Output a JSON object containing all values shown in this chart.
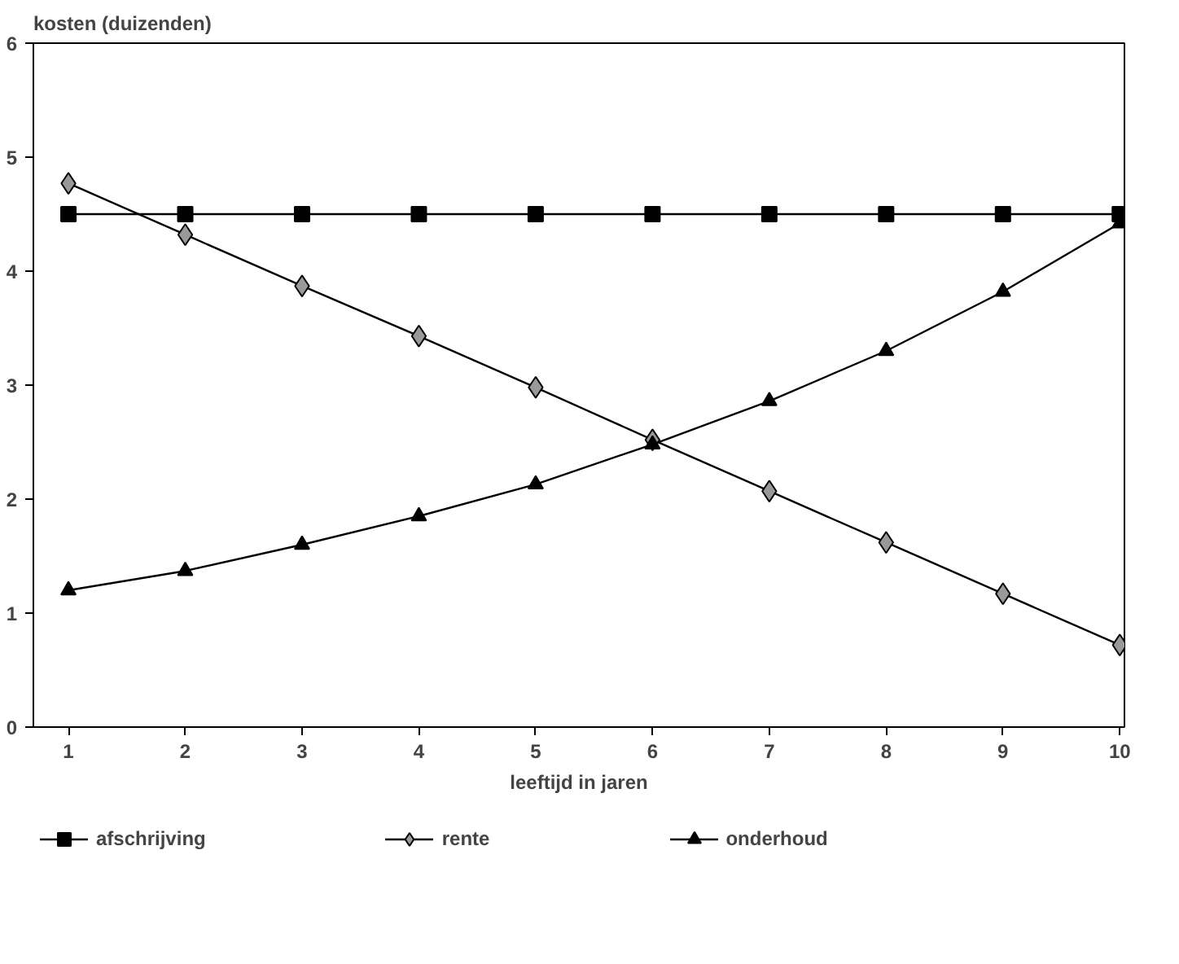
{
  "chart_data": {
    "type": "line",
    "xlabel": "leeftijd in jaren",
    "ylabel": "kosten (duizenden)",
    "x": [
      1,
      2,
      3,
      4,
      5,
      6,
      7,
      8,
      9,
      10
    ],
    "series": [
      {
        "name": "afschrijving",
        "color": "#000000",
        "marker": "square",
        "values": [
          4.5,
          4.5,
          4.5,
          4.5,
          4.5,
          4.5,
          4.5,
          4.5,
          4.5,
          4.5
        ]
      },
      {
        "name": "rente",
        "color": "#000000",
        "marker": "diamond",
        "values": [
          4.77,
          4.32,
          3.87,
          3.43,
          2.98,
          2.52,
          2.07,
          1.62,
          1.17,
          0.72
        ]
      },
      {
        "name": "onderhoud",
        "color": "#000000",
        "marker": "triangle",
        "values": [
          1.2,
          1.37,
          1.6,
          1.85,
          2.13,
          2.48,
          2.86,
          3.3,
          3.82,
          4.42
        ]
      }
    ],
    "xlim": [
      0.7,
      10.04
    ],
    "ylim": [
      0,
      6
    ],
    "xticks": [
      1,
      2,
      3,
      4,
      5,
      6,
      7,
      8,
      9,
      10
    ],
    "yticks": [
      0,
      1,
      2,
      3,
      4,
      5,
      6
    ],
    "grid": false,
    "legend": "bottom",
    "line_style": "solid"
  }
}
